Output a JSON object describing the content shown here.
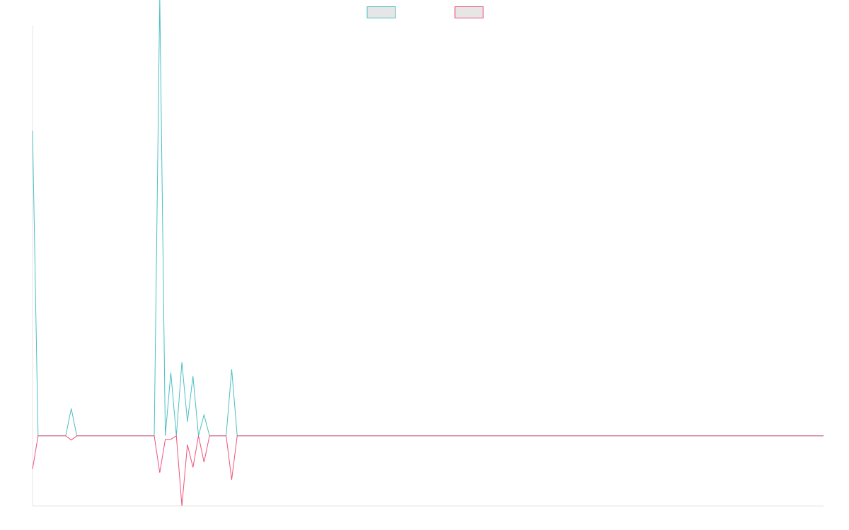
{
  "chart_data": {
    "type": "line",
    "title": "",
    "xlabel": "",
    "ylabel": "",
    "x": [
      0,
      1,
      2,
      3,
      4,
      5,
      6,
      7,
      8,
      9,
      10,
      11,
      12,
      13,
      14,
      15,
      16,
      17,
      18,
      19,
      20,
      21,
      22,
      23,
      24,
      25,
      26,
      27,
      28,
      29,
      30,
      31,
      32,
      33,
      34,
      35,
      36,
      37,
      38,
      39,
      40,
      41,
      42,
      43,
      44,
      45,
      46,
      47,
      48,
      49,
      50,
      51,
      52,
      53,
      54,
      55,
      56,
      57,
      58,
      59,
      60,
      61,
      62,
      63,
      64,
      65,
      66,
      67,
      68,
      69,
      70,
      71,
      72,
      73,
      74,
      75,
      76,
      77,
      78,
      79,
      80,
      81,
      82,
      83,
      84,
      85,
      86,
      87,
      88,
      89,
      90,
      91,
      92,
      93,
      94,
      95,
      96,
      97,
      98,
      99,
      100,
      101,
      102,
      103,
      104,
      105,
      106,
      107,
      108,
      109,
      110,
      111,
      112,
      113,
      114,
      115,
      116,
      117,
      118,
      119,
      120,
      121,
      122,
      123,
      124,
      125,
      126,
      127,
      128,
      129,
      130,
      131,
      132,
      133,
      134,
      135,
      136,
      137,
      138,
      139,
      140,
      141,
      142,
      143
    ],
    "ylim": [
      -2.0,
      11.7
    ],
    "grid": false,
    "legend_position": "top-center",
    "series": [
      {
        "color": "#4bbfc4",
        "fill": "#e6e6e6",
        "values": [
          8.7,
          0,
          0,
          0,
          0,
          0,
          0,
          0.78,
          0,
          0,
          0,
          0,
          0,
          0,
          0,
          0,
          0,
          0,
          0,
          0,
          0,
          0,
          0,
          12.5,
          0,
          1.8,
          0,
          2.1,
          0.4,
          1.7,
          0,
          0.6,
          0,
          0,
          0,
          0,
          1.9,
          0,
          0,
          0,
          0,
          0,
          0,
          0,
          0,
          0,
          0,
          0,
          0,
          0,
          0,
          0,
          0,
          0,
          0,
          0,
          0,
          0,
          0,
          0,
          0,
          0,
          0,
          0,
          0,
          0,
          0,
          0,
          0,
          0,
          0,
          0,
          0,
          0,
          0,
          0,
          0,
          0,
          0,
          0,
          0,
          0,
          0,
          0,
          0,
          0,
          0,
          0,
          0,
          0,
          0,
          0,
          0,
          0,
          0,
          0,
          0,
          0,
          0,
          0,
          0,
          0,
          0,
          0,
          0,
          0,
          0,
          0,
          0,
          0,
          0,
          0,
          0,
          0,
          0,
          0,
          0,
          0,
          0,
          0,
          0,
          0,
          0,
          0,
          0,
          0,
          0,
          0,
          0,
          0,
          0,
          0,
          0,
          0,
          0,
          0,
          0,
          0,
          0,
          0,
          0,
          0,
          0,
          0
        ]
      },
      {
        "color": "#f0517a",
        "fill": "#e6e6e6",
        "values": [
          -0.95,
          0,
          0,
          0,
          0,
          0,
          0,
          -0.12,
          0,
          0,
          0,
          0,
          0,
          0,
          0,
          0,
          0,
          0,
          0,
          0,
          0,
          0,
          0,
          -1.05,
          -0.1,
          -0.1,
          0,
          -2.0,
          -0.25,
          -0.9,
          0,
          -0.75,
          0,
          0,
          0,
          0,
          -1.25,
          0,
          0,
          0,
          0,
          0,
          0,
          0,
          0,
          0,
          0,
          0,
          0,
          0,
          0,
          0,
          0,
          0,
          0,
          0,
          0,
          0,
          0,
          0,
          0,
          0,
          0,
          0,
          0,
          0,
          0,
          0,
          0,
          0,
          0,
          0,
          0,
          0,
          0,
          0,
          0,
          0,
          0,
          0,
          0,
          0,
          0,
          0,
          0,
          0,
          0,
          0,
          0,
          0,
          0,
          0,
          0,
          0,
          0,
          0,
          0,
          0,
          0,
          0,
          0,
          0,
          0,
          0,
          0,
          0,
          0,
          0,
          0,
          0,
          0,
          0,
          0,
          0,
          0,
          0,
          0,
          0,
          0,
          0,
          0,
          0,
          0,
          0,
          0,
          0,
          0,
          0,
          0,
          0,
          0,
          0,
          0,
          0,
          0,
          0,
          0,
          0,
          0,
          0,
          0,
          0,
          0,
          0
        ]
      }
    ]
  }
}
